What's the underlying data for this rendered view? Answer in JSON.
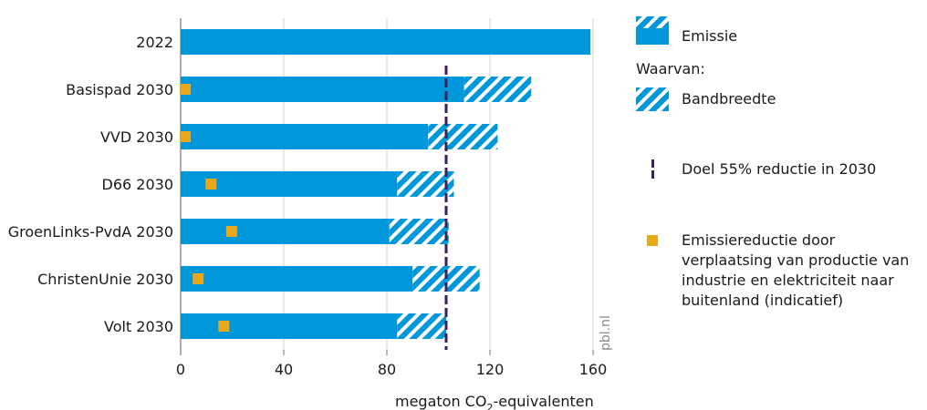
{
  "chart_data": {
    "type": "bar",
    "orientation": "horizontal",
    "categories": [
      "2022",
      "Basispad 2030",
      "VVD 2030",
      "D66 2030",
      "GroenLinks-PvdA 2030",
      "ChristenUnie 2030",
      "Volt 2030"
    ],
    "series": [
      {
        "name": "Emissie",
        "values": [
          159,
          110,
          96,
          84,
          81,
          90,
          84
        ]
      },
      {
        "name": "Bandbreedte",
        "values": [
          0,
          26,
          27,
          22,
          23,
          26,
          19
        ]
      },
      {
        "name": "Emissiereductie door verplaatsing van productie van industrie en elektriciteit naar buitenland (indicatief)",
        "values": [
          null,
          0,
          0,
          10,
          18,
          5,
          15
        ]
      }
    ],
    "reference_line": {
      "name": "Doel 55% reductie in 2030",
      "value": 103
    },
    "xlabel_main": "megaton CO",
    "xlabel_sub": "2",
    "xlabel_rest": "-equivalenten",
    "xlim": [
      0,
      160
    ],
    "xticks": [
      0,
      40,
      80,
      120,
      160
    ],
    "grid": true,
    "legend_position": "right",
    "source_label": "pbl.nl"
  },
  "legend": {
    "emissie": "Emissie",
    "waarvan": "Waarvan:",
    "bandbreedte": "Bandbreedte",
    "doel": "Doel 55% reductie in 2030",
    "verplaatsing": "Emissiereductie door verplaatsing van productie van industrie en elektriciteit naar buitenland (indicatief)"
  },
  "colors": {
    "bar": "#0098da",
    "target_line": "#3b2159",
    "marker": "#e8a81c",
    "grid": "#d0d0d0",
    "axis": "#777777"
  }
}
